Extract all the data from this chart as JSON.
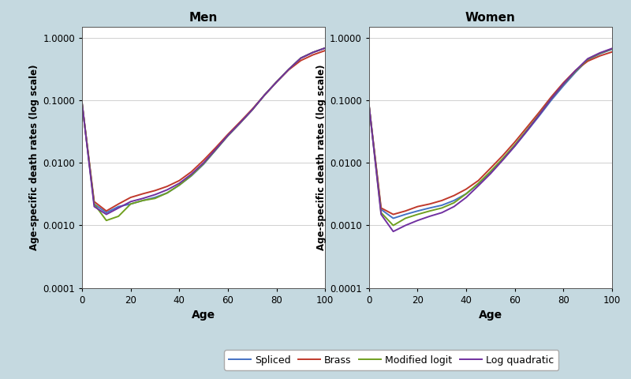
{
  "background_color": "#c5d9e0",
  "plot_bg_color": "#ffffff",
  "title_men": "Men",
  "title_women": "Women",
  "ylabel": "Age-specific death rates (log scale)",
  "xlabel": "Age",
  "ylim_log": [
    0.0001,
    1.5
  ],
  "xlim": [
    0,
    100
  ],
  "yticks": [
    0.0001,
    0.001,
    0.01,
    0.1,
    1.0
  ],
  "ytick_labels": [
    "0.0001",
    "0.0010",
    "0.0100",
    "0.1000",
    "1.0000"
  ],
  "xticks": [
    0,
    20,
    40,
    60,
    80,
    100
  ],
  "legend_labels": [
    "Spliced",
    "Brass",
    "Modified logit",
    "Log quadratic"
  ],
  "line_colors": [
    "#4472c4",
    "#c0392b",
    "#70a020",
    "#7030a0"
  ],
  "line_width": 1.4,
  "men": {
    "ages": [
      0,
      5,
      10,
      15,
      20,
      25,
      30,
      35,
      40,
      45,
      50,
      55,
      60,
      65,
      70,
      75,
      80,
      85,
      90,
      95,
      100
    ],
    "spliced": [
      0.09,
      0.0022,
      0.0016,
      0.002,
      0.0022,
      0.0025,
      0.0028,
      0.0033,
      0.0044,
      0.0062,
      0.0095,
      0.016,
      0.027,
      0.043,
      0.07,
      0.12,
      0.195,
      0.31,
      0.47,
      0.58,
      0.68
    ],
    "brass": [
      0.09,
      0.0024,
      0.0017,
      0.0022,
      0.0028,
      0.0032,
      0.0036,
      0.0042,
      0.0052,
      0.0072,
      0.011,
      0.0175,
      0.0285,
      0.045,
      0.072,
      0.12,
      0.195,
      0.305,
      0.43,
      0.53,
      0.62
    ],
    "modified_logit": [
      0.09,
      0.0022,
      0.0012,
      0.0014,
      0.0022,
      0.0025,
      0.0027,
      0.0033,
      0.0044,
      0.0063,
      0.0097,
      0.0162,
      0.0272,
      0.0432,
      0.07,
      0.12,
      0.196,
      0.311,
      0.471,
      0.581,
      0.681
    ],
    "log_quadratic": [
      0.09,
      0.002,
      0.0015,
      0.0019,
      0.0024,
      0.0027,
      0.0031,
      0.0037,
      0.0047,
      0.0066,
      0.01,
      0.0165,
      0.0275,
      0.0435,
      0.0702,
      0.1202,
      0.1952,
      0.3102,
      0.4702,
      0.5802,
      0.6802
    ]
  },
  "women": {
    "ages": [
      0,
      5,
      10,
      15,
      20,
      25,
      30,
      35,
      40,
      45,
      50,
      55,
      60,
      65,
      70,
      75,
      80,
      85,
      90,
      95,
      100
    ],
    "spliced": [
      0.085,
      0.0018,
      0.0013,
      0.0015,
      0.0017,
      0.0019,
      0.0021,
      0.0025,
      0.0032,
      0.0046,
      0.007,
      0.0112,
      0.0185,
      0.032,
      0.056,
      0.1,
      0.17,
      0.28,
      0.44,
      0.55,
      0.65
    ],
    "brass": [
      0.085,
      0.0019,
      0.0015,
      0.0017,
      0.002,
      0.0022,
      0.0025,
      0.003,
      0.0038,
      0.0052,
      0.0082,
      0.013,
      0.0215,
      0.037,
      0.064,
      0.113,
      0.19,
      0.3,
      0.42,
      0.51,
      0.59
    ],
    "modified_logit": [
      0.085,
      0.0016,
      0.001,
      0.0013,
      0.0015,
      0.0017,
      0.0019,
      0.0023,
      0.0032,
      0.0047,
      0.0073,
      0.0117,
      0.0194,
      0.0336,
      0.059,
      0.106,
      0.18,
      0.29,
      0.45,
      0.56,
      0.66
    ],
    "log_quadratic": [
      0.085,
      0.0015,
      0.0008,
      0.001,
      0.0012,
      0.0014,
      0.0016,
      0.002,
      0.0028,
      0.0043,
      0.0067,
      0.011,
      0.0185,
      0.0325,
      0.058,
      0.106,
      0.182,
      0.298,
      0.46,
      0.57,
      0.67
    ]
  }
}
